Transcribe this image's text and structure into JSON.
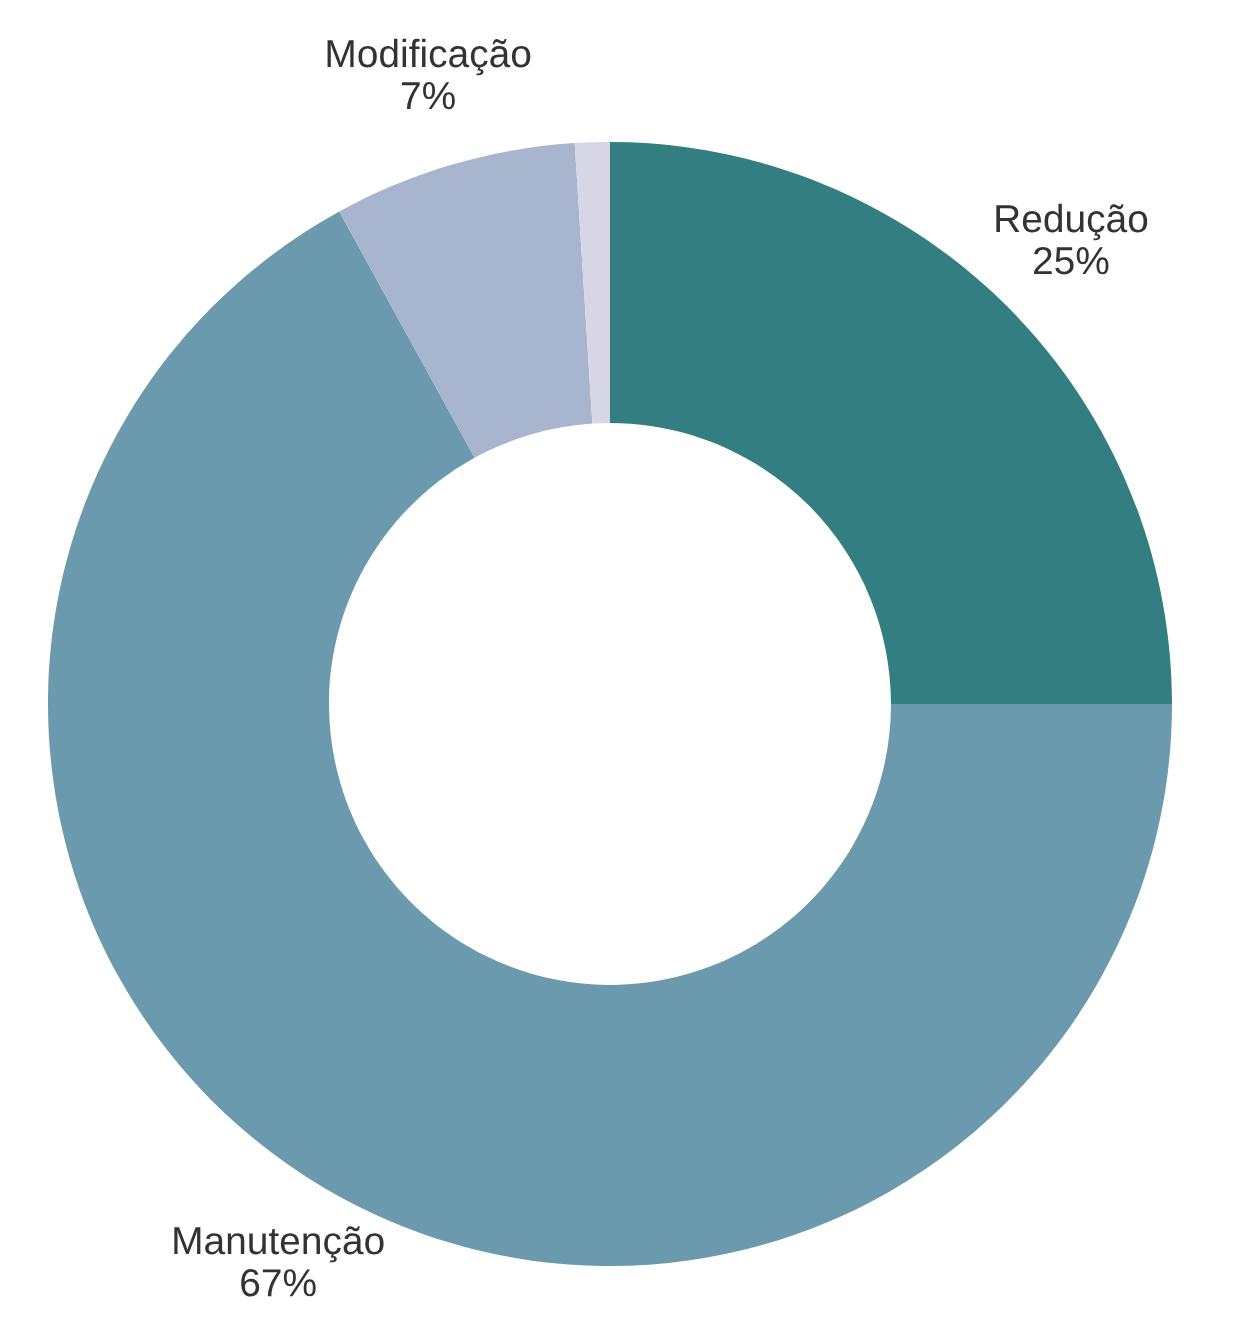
{
  "chart_data": {
    "type": "donut",
    "categories": [
      "Redução",
      "Manutenção",
      "Modificação",
      null
    ],
    "values": [
      25,
      67,
      7,
      1
    ],
    "value_labels": [
      "25%",
      "67%",
      "7%",
      null
    ],
    "colors": [
      "#337e80",
      "#6b9aae",
      "#a8b5cf",
      "#d6d6e4"
    ],
    "legend": false
  }
}
